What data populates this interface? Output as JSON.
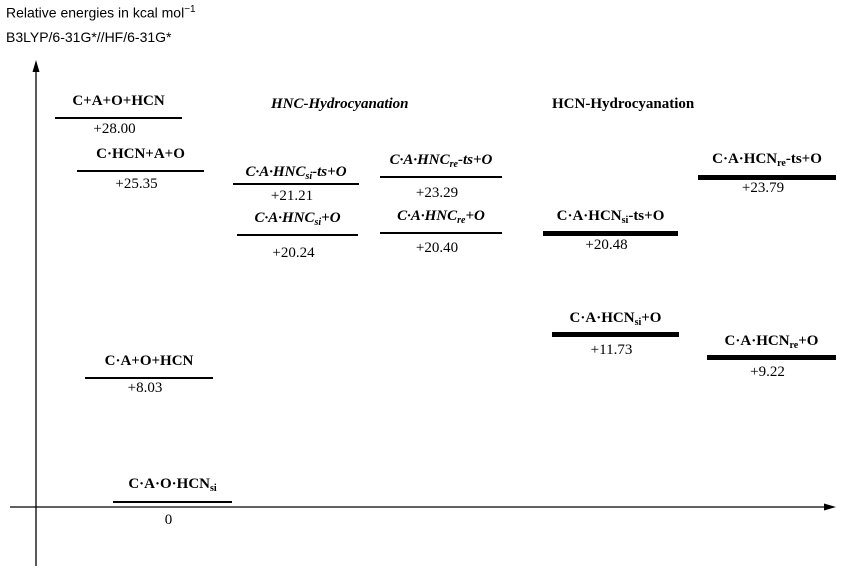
{
  "header": {
    "title_line1": "Relative energies in kcal mol",
    "title_sup": "−1",
    "title_line2": "B3LYP/6-31G*//HF/6-31G*"
  },
  "sections": {
    "hnc": "HNC-Hydrocyanation",
    "hcn": "HCN-Hydrocyanation"
  },
  "levels": [
    {
      "id": "c-a-o-hcn-free",
      "main": "C+A+O+HCN",
      "sub": "",
      "tail": "",
      "value": "+28.00",
      "energy": 28.0,
      "style": "thin",
      "italic": false
    },
    {
      "id": "c-hcn-a-o",
      "main": "C·HCN+A+O",
      "sub": "",
      "tail": "",
      "value": "+25.35",
      "energy": 25.35,
      "style": "thin",
      "italic": false
    },
    {
      "id": "c-a-o-hcn",
      "main": "C·A+O+HCN",
      "sub": "",
      "tail": "",
      "value": "+8.03",
      "energy": 8.03,
      "style": "thin",
      "italic": false
    },
    {
      "id": "c-a-o-hcn-si",
      "main": "C·A·O·HCN",
      "sub": "si",
      "tail": "",
      "value": "0",
      "energy": 0,
      "style": "medium",
      "italic": false
    },
    {
      "id": "c-a-hnc-si-ts",
      "main": "C·A·HNC",
      "sub": "si",
      "tail": "-ts+O",
      "value": "+21.21",
      "energy": 21.21,
      "style": "thin",
      "italic": true
    },
    {
      "id": "c-a-hnc-si",
      "main": "C·A·HNC",
      "sub": "si",
      "tail": "+O",
      "value": "+20.24",
      "energy": 20.24,
      "style": "thin",
      "italic": true
    },
    {
      "id": "c-a-hnc-re-ts",
      "main": "C·A·HNC",
      "sub": "re",
      "tail": "-ts+O",
      "value": "+23.29",
      "energy": 23.29,
      "style": "thin",
      "italic": true
    },
    {
      "id": "c-a-hnc-re",
      "main": "C·A·HNC",
      "sub": "re",
      "tail": "+O",
      "value": "+20.40",
      "energy": 20.4,
      "style": "thin",
      "italic": true
    },
    {
      "id": "c-a-hcn-si-ts",
      "main": "C·A·HCN",
      "sub": "si",
      "tail": "-ts+O",
      "value": "+20.48",
      "energy": 20.48,
      "style": "thick",
      "italic": false
    },
    {
      "id": "c-a-hcn-si",
      "main": "C·A·HCN",
      "sub": "si",
      "tail": "+O",
      "value": "+11.73",
      "energy": 11.73,
      "style": "thick",
      "italic": false
    },
    {
      "id": "c-a-hcn-re-ts",
      "main": "C·A·HCN",
      "sub": "re",
      "tail": "-ts+O",
      "value": "+23.79",
      "energy": 23.79,
      "style": "thick",
      "italic": false
    },
    {
      "id": "c-a-hcn-re",
      "main": "C·A·HCN",
      "sub": "re",
      "tail": "+O",
      "value": "+9.22",
      "energy": 9.22,
      "style": "thick",
      "italic": false
    }
  ]
}
